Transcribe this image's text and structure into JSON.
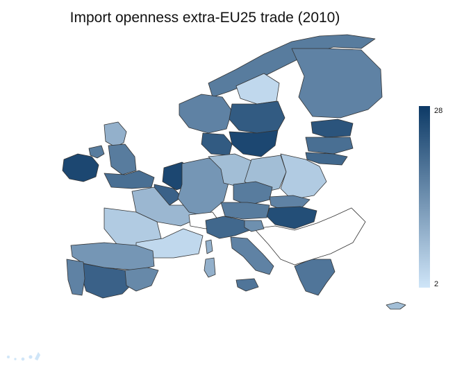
{
  "title": "Import openness extra-EU25 trade (2010)",
  "legend": {
    "max_label": "28",
    "min_label": "2"
  },
  "colors": {
    "scale_low": "#cfe5f8",
    "scale_high": "#0d3a66",
    "no_data": "#ffffff",
    "border": "#333333"
  },
  "map_data": {
    "type": "choropleth",
    "value_range": [
      2,
      28
    ],
    "regions": [
      {
        "name": "Ireland",
        "value": 26
      },
      {
        "name": "Northern Ireland",
        "value": 18
      },
      {
        "name": "Scotland",
        "value": 10
      },
      {
        "name": "Northern England",
        "value": 18
      },
      {
        "name": "Southern England",
        "value": 20
      },
      {
        "name": "Norway north",
        "value": 18
      },
      {
        "name": "Norway south",
        "value": 17
      },
      {
        "name": "Sweden north",
        "value": 4
      },
      {
        "name": "Sweden central",
        "value": 23
      },
      {
        "name": "Sweden south",
        "value": 26
      },
      {
        "name": "Finland",
        "value": 17
      },
      {
        "name": "Estonia",
        "value": 24
      },
      {
        "name": "Latvia",
        "value": 20
      },
      {
        "name": "Lithuania",
        "value": 21
      },
      {
        "name": "Denmark",
        "value": 23
      },
      {
        "name": "Netherlands",
        "value": 26
      },
      {
        "name": "Belgium",
        "value": 22
      },
      {
        "name": "France north",
        "value": 9
      },
      {
        "name": "France west",
        "value": 6
      },
      {
        "name": "France south",
        "value": 4
      },
      {
        "name": "Germany west",
        "value": 14
      },
      {
        "name": "Germany east",
        "value": 8
      },
      {
        "name": "Poland west",
        "value": 8
      },
      {
        "name": "Poland east",
        "value": 6
      },
      {
        "name": "Czech Republic",
        "value": 18
      },
      {
        "name": "Slovakia",
        "value": 17
      },
      {
        "name": "Austria",
        "value": 18
      },
      {
        "name": "Hungary",
        "value": 25
      },
      {
        "name": "Switzerland",
        "value": null
      },
      {
        "name": "Italy north",
        "value": 21
      },
      {
        "name": "Italy south",
        "value": 17
      },
      {
        "name": "Sicily",
        "value": 19
      },
      {
        "name": "Sardinia",
        "value": 10
      },
      {
        "name": "Corsica",
        "value": 10
      },
      {
        "name": "Spain north",
        "value": 14
      },
      {
        "name": "Spain central",
        "value": 22
      },
      {
        "name": "Spain east",
        "value": 16
      },
      {
        "name": "Portugal",
        "value": 17
      },
      {
        "name": "Greece",
        "value": 19
      },
      {
        "name": "Cyprus",
        "value": 8
      },
      {
        "name": "Balkans",
        "value": null
      },
      {
        "name": "Slovenia",
        "value": 15
      }
    ]
  }
}
